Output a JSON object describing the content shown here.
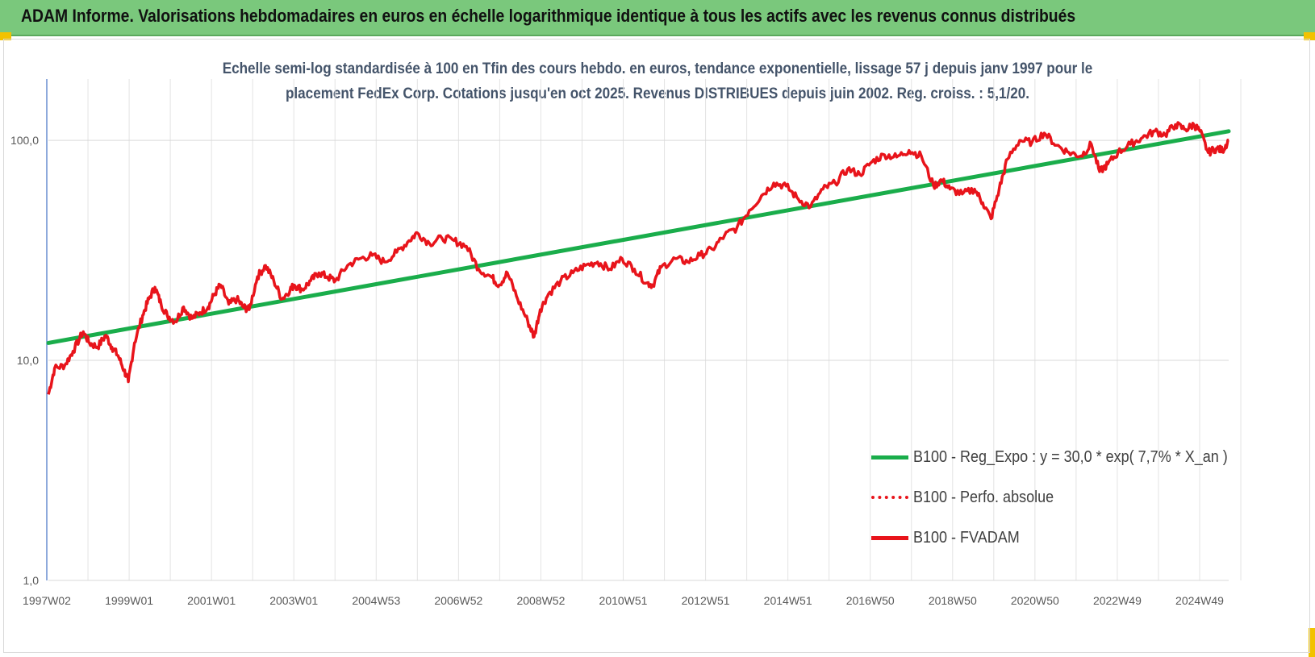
{
  "banner": {
    "title": "ADAM Informe. Valorisations hebdomadaires en euros en échelle logarithmique identique à tous les actifs avec les revenus connus distribués",
    "color": "#7ac87c"
  },
  "chart_data": {
    "type": "line",
    "title_line1": "Echelle semi-log standardisée à 100 en Tfin des cours hebdo. en euros, tendance exponentielle, lissage 57 j depuis janv 1997 pour le",
    "title_line2": "placement FedEx Corp. Cotations jusqu'en oct 2025. Revenus DISTRIBUES depuis juin 2002. Reg. croiss. : 5,1/20.",
    "y_scale": "log",
    "ylim": [
      1,
      190
    ],
    "y_ticks": [
      "1,0",
      "10,0",
      "100,0"
    ],
    "x_range": [
      1997.0,
      2025.8
    ],
    "x_ticks": [
      "1997W02",
      "1999W01",
      "2001W01",
      "2003W01",
      "2004W53",
      "2006W52",
      "2008W52",
      "2010W51",
      "2012W51",
      "2014W51",
      "2016W50",
      "2018W50",
      "2020W50",
      "2022W49",
      "2024W49"
    ],
    "grid": true,
    "legend_position": "bottom-right",
    "colors": {
      "regression": "#1aad4b",
      "fvadam": "#e8141b",
      "perfo": "#e8141b"
    },
    "series": [
      {
        "name": "B100 - Reg_Expo : y = 30,0 * exp( 7,7% *  X_an )",
        "style": "solid",
        "x": [
          1997.0,
          2025.8
        ],
        "y": [
          12.0,
          110.0
        ]
      },
      {
        "name": "B100 - Perfo. absolue",
        "style": "dotted",
        "x": [],
        "y": []
      },
      {
        "name": "B100 - FVADAM",
        "style": "solid",
        "x": [
          1997.0,
          1997.15,
          1997.4,
          1997.6,
          1997.85,
          1998.0,
          1998.2,
          1998.4,
          1998.55,
          1998.7,
          1998.85,
          1998.95,
          1999.1,
          1999.3,
          1999.45,
          1999.6,
          1999.75,
          1999.9,
          2000.1,
          2000.3,
          2000.5,
          2000.7,
          2000.9,
          2001.05,
          2001.2,
          2001.4,
          2001.6,
          2001.75,
          2001.9,
          2002.1,
          2002.3,
          2002.5,
          2002.7,
          2002.9,
          2003.0,
          2003.2,
          2003.4,
          2003.6,
          2003.8,
          2004.0,
          2004.3,
          2004.6,
          2004.9,
          2005.2,
          2005.5,
          2005.8,
          2006.0,
          2006.3,
          2006.6,
          2006.9,
          2007.2,
          2007.5,
          2007.8,
          2008.0,
          2008.2,
          2008.45,
          2008.7,
          2008.85,
          2009.0,
          2009.2,
          2009.5,
          2009.8,
          2010.1,
          2010.4,
          2010.7,
          2011.0,
          2011.3,
          2011.6,
          2011.75,
          2011.95,
          2012.3,
          2012.6,
          2012.9,
          2013.2,
          2013.5,
          2013.8,
          2014.1,
          2014.4,
          2014.7,
          2015.0,
          2015.3,
          2015.6,
          2015.9,
          2016.2,
          2016.5,
          2016.8,
          2017.1,
          2017.4,
          2017.7,
          2018.0,
          2018.3,
          2018.6,
          2018.8,
          2019.0,
          2019.3,
          2019.6,
          2019.8,
          2020.0,
          2020.2,
          2020.4,
          2020.7,
          2021.0,
          2021.3,
          2021.6,
          2021.9,
          2022.2,
          2022.45,
          2022.65,
          2022.85,
          2023.1,
          2023.4,
          2023.7,
          2024.0,
          2024.25,
          2024.5,
          2024.75,
          2024.95,
          2025.1,
          2025.3,
          2025.5,
          2025.65,
          2025.8
        ],
        "y": [
          7.0,
          9.2,
          9.5,
          11.0,
          13.5,
          12.0,
          11.5,
          13.0,
          11.5,
          10.5,
          9.0,
          8.0,
          12.0,
          16.0,
          19.0,
          21.5,
          18.0,
          16.0,
          15.0,
          17.5,
          15.5,
          16.5,
          17.5,
          20.0,
          22.0,
          18.0,
          19.0,
          17.5,
          17.0,
          24.0,
          27.0,
          23.0,
          19.0,
          21.0,
          22.0,
          21.0,
          23.0,
          25.0,
          24.0,
          23.0,
          27.0,
          29.0,
          30.0,
          28.0,
          31.0,
          35.0,
          38.0,
          34.0,
          36.0,
          35.0,
          33.0,
          26.0,
          24.0,
          22.0,
          25.0,
          19.0,
          15.0,
          12.8,
          17.0,
          20.0,
          23.0,
          25.0,
          27.0,
          28.0,
          26.0,
          29.0,
          26.0,
          22.5,
          22.0,
          26.5,
          29.0,
          28.0,
          30.0,
          32.0,
          37.0,
          40.0,
          48.0,
          56.0,
          64.0,
          62.0,
          54.0,
          50.0,
          60.0,
          64.0,
          74.0,
          70.0,
          80.0,
          86.0,
          84.0,
          90.0,
          85.0,
          62.0,
          66.0,
          60.0,
          57.0,
          60.0,
          52.0,
          44.0,
          60.0,
          82.0,
          100.0,
          98.0,
          108.0,
          95.0,
          88.0,
          85.0,
          96.0,
          72.0,
          78.0,
          88.0,
          96.0,
          103.0,
          110.0,
          106.0,
          118.0,
          112.0,
          118.0,
          110.0,
          88.0,
          92.0,
          90.0,
          100.0
        ]
      }
    ]
  }
}
